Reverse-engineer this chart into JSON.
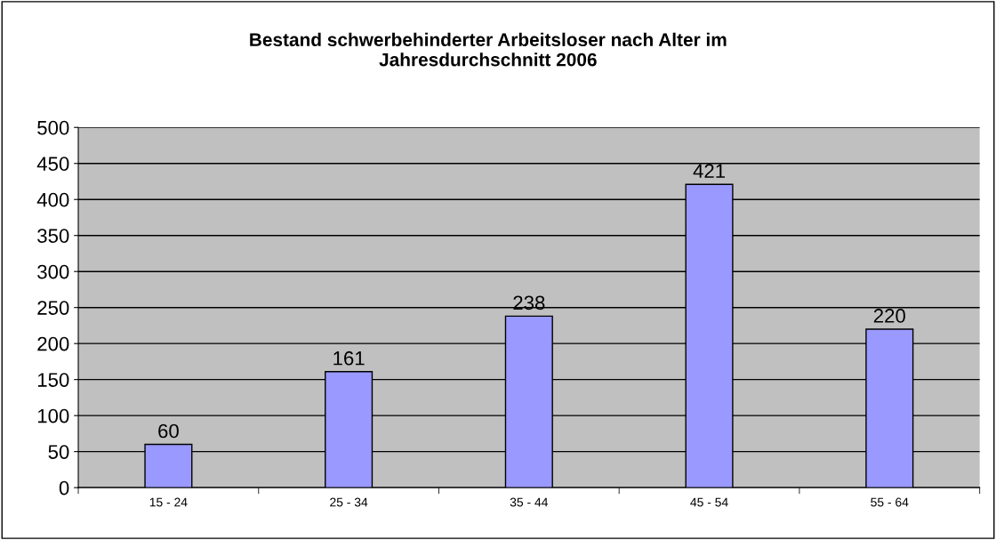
{
  "chart_data": {
    "type": "bar",
    "title": "Bestand schwerbehinderter Arbeitsloser nach Alter im\nJahresdurchschnitt 2006",
    "categories": [
      "15 - 24",
      "25 - 34",
      "35 - 44",
      "45 - 54",
      "55 - 64"
    ],
    "values": [
      60,
      161,
      238,
      421,
      220
    ],
    "color": "#9999ff",
    "ylim": [
      0,
      500
    ],
    "yticks": [
      0,
      50,
      100,
      150,
      200,
      250,
      300,
      350,
      400,
      450,
      500
    ],
    "grid": "y",
    "data_labels": true
  }
}
